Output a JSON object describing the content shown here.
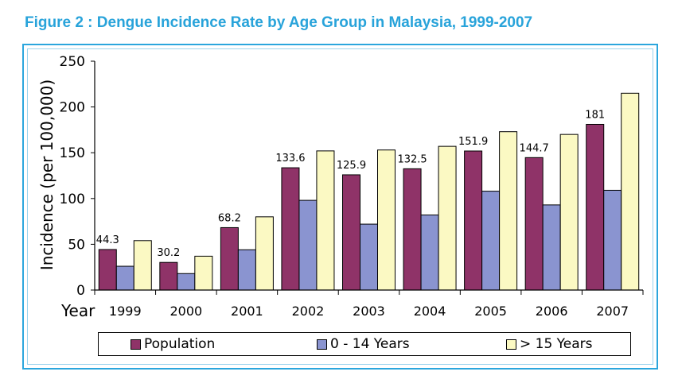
{
  "figure_title": "Figure 2 : Dengue Incidence Rate by Age Group in Malaysia, 1999-2007",
  "colors": {
    "title": "#28a3da",
    "border": "#2ba6dd",
    "population": "#8f3368",
    "age_0_14": "#8a94d0",
    "age_over_15": "#fbf9c3"
  },
  "chart_data": {
    "type": "bar",
    "title": "Figure 2 : Dengue Incidence Rate by Age Group in Malaysia, 1999-2007",
    "xlabel": "Year",
    "ylabel": "Incidence (per 100,000)",
    "ylim": [
      0,
      250
    ],
    "yticks": [
      0,
      50,
      100,
      150,
      200,
      250
    ],
    "grid": false,
    "legend_position": "bottom",
    "categories": [
      "1999",
      "2000",
      "2001",
      "2002",
      "2003",
      "2004",
      "2005",
      "2006",
      "2007"
    ],
    "series": [
      {
        "name": "Population",
        "values": [
          44.3,
          30.2,
          68.2,
          133.6,
          125.9,
          132.5,
          151.9,
          144.7,
          181
        ],
        "labels": [
          "44.3",
          "30.2",
          "68.2",
          "133.6",
          "125.9",
          "132.5",
          "151.9",
          "144.7",
          "181"
        ]
      },
      {
        "name": "0 - 14 Years",
        "values": [
          26,
          18,
          44,
          98,
          72,
          82,
          108,
          93,
          109
        ]
      },
      {
        "name": "> 15 Years",
        "values": [
          54,
          37,
          80,
          152,
          153,
          157,
          173,
          170,
          215
        ]
      }
    ]
  }
}
